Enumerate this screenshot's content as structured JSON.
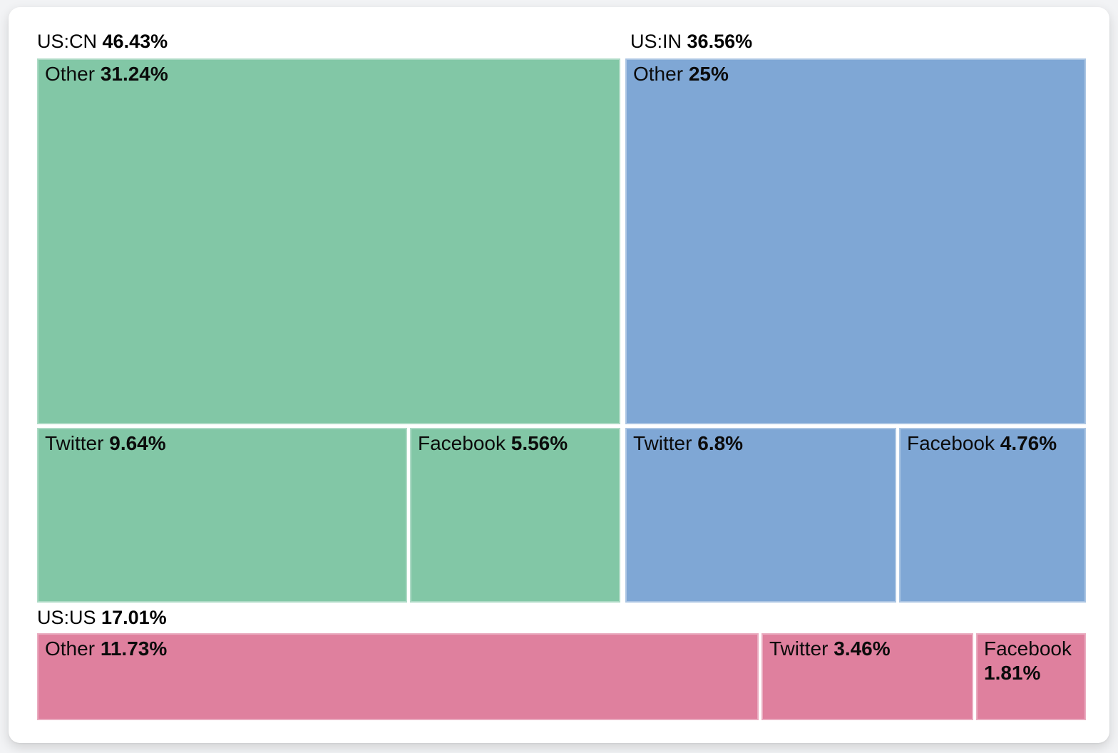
{
  "chart_data": {
    "type": "treemap",
    "unit": "%",
    "legend": "none",
    "colors": {
      "us_cn": "#82C7A6",
      "us_in": "#7FA7D5",
      "us_us": "#DF809E",
      "label_text": "#000000",
      "card_background": "#FFFFFF",
      "page_background": "#F2F3F5"
    },
    "groups": [
      {
        "label": "US:CN",
        "value": 46.43,
        "value_label": "46.43%",
        "color": "#82C7A6",
        "children": [
          {
            "name": "Other",
            "value": 31.24,
            "value_label": "31.24%"
          },
          {
            "name": "Twitter",
            "value": 9.64,
            "value_label": "9.64%"
          },
          {
            "name": "Facebook",
            "value": 5.56,
            "value_label": "5.56%"
          }
        ]
      },
      {
        "label": "US:IN",
        "value": 36.56,
        "value_label": "36.56%",
        "color": "#7FA7D5",
        "children": [
          {
            "name": "Other",
            "value": 25,
            "value_label": "25%"
          },
          {
            "name": "Twitter",
            "value": 6.8,
            "value_label": "6.8%"
          },
          {
            "name": "Facebook",
            "value": 4.76,
            "value_label": "4.76%"
          }
        ]
      },
      {
        "label": "US:US",
        "value": 17.01,
        "value_label": "17.01%",
        "color": "#DF809E",
        "children": [
          {
            "name": "Other",
            "value": 11.73,
            "value_label": "11.73%"
          },
          {
            "name": "Twitter",
            "value": 3.46,
            "value_label": "3.46%"
          },
          {
            "name": "Facebook",
            "value": 1.81,
            "value_label": "1.81%"
          }
        ]
      }
    ]
  }
}
